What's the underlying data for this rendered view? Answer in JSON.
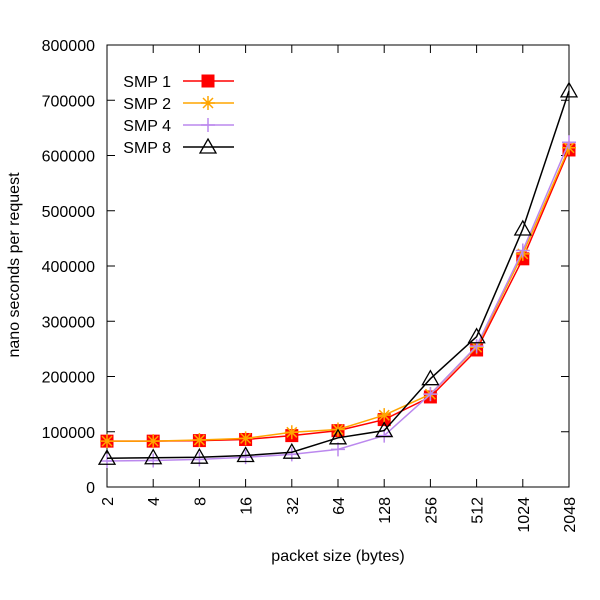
{
  "chart_data": {
    "type": "line",
    "title": "",
    "xlabel": "packet size (bytes)",
    "ylabel": "nano seconds per request",
    "x_scale": "log2",
    "categories": [
      "2",
      "4",
      "8",
      "16",
      "32",
      "64",
      "128",
      "256",
      "512",
      "1024",
      "2048"
    ],
    "x": [
      2,
      4,
      8,
      16,
      32,
      64,
      128,
      256,
      512,
      1024,
      2048
    ],
    "ylim": [
      0,
      800000
    ],
    "yticks": [
      0,
      100000,
      200000,
      300000,
      400000,
      500000,
      600000,
      700000,
      800000
    ],
    "ytick_labels": [
      "0",
      "100000",
      "200000",
      "300000",
      "400000",
      "500000",
      "600000",
      "700000",
      "800000"
    ],
    "grid": false,
    "legend_position": "top-left",
    "series": [
      {
        "name": "SMP 1",
        "color": "#ff0000",
        "marker": "filled-square",
        "values": [
          83000,
          83000,
          84000,
          86000,
          93000,
          102000,
          122000,
          163000,
          248000,
          413000,
          610000
        ]
      },
      {
        "name": "SMP 2",
        "color": "#ffa500",
        "marker": "asterisk",
        "values": [
          83000,
          83000,
          85000,
          88000,
          99000,
          104000,
          130000,
          168000,
          253000,
          422000,
          614000
        ]
      },
      {
        "name": "SMP 4",
        "color": "#bb88ee",
        "marker": "plus",
        "values": [
          47000,
          48000,
          50000,
          54000,
          59000,
          68000,
          93000,
          168000,
          255000,
          428000,
          624000
        ]
      },
      {
        "name": "SMP 8",
        "color": "#000000",
        "marker": "open-triangle",
        "values": [
          52000,
          53000,
          54000,
          57000,
          63000,
          89000,
          102000,
          196000,
          272000,
          467000,
          717000
        ]
      }
    ]
  }
}
